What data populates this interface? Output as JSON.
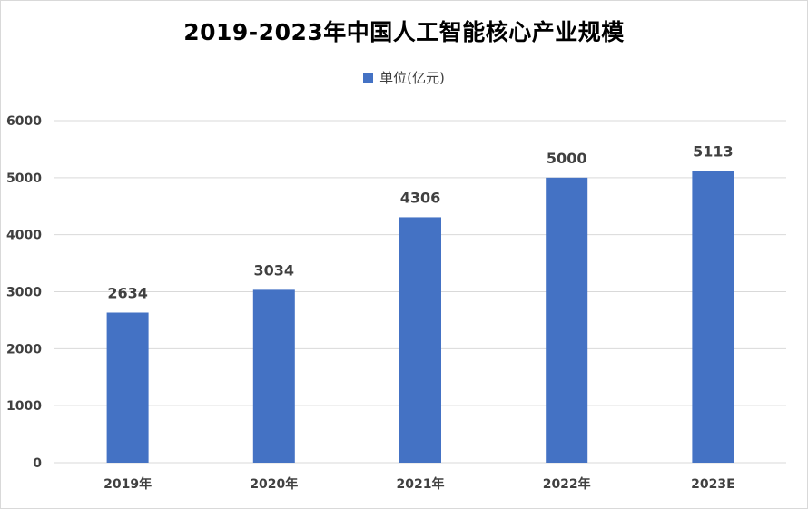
{
  "chart_data": {
    "type": "bar",
    "title": "2019-2023年中国人工智能核心产业规模",
    "categories": [
      "2019年",
      "2020年",
      "2021年",
      "2022年",
      "2023E"
    ],
    "series": [
      {
        "name": "单位(亿元)",
        "values": [
          2634,
          3034,
          4306,
          5000,
          5113
        ]
      }
    ],
    "yticks": [
      0,
      1000,
      2000,
      3000,
      4000,
      5000,
      6000
    ],
    "ylim": [
      0,
      6000
    ],
    "grid": true,
    "legend_position": "top-center",
    "data_labels": [
      "2634",
      "3034",
      "4306",
      "5000",
      "5113"
    ],
    "colors": {
      "bar": "#4472c4",
      "grid": "#d9d9d9",
      "text": "#404040"
    }
  }
}
